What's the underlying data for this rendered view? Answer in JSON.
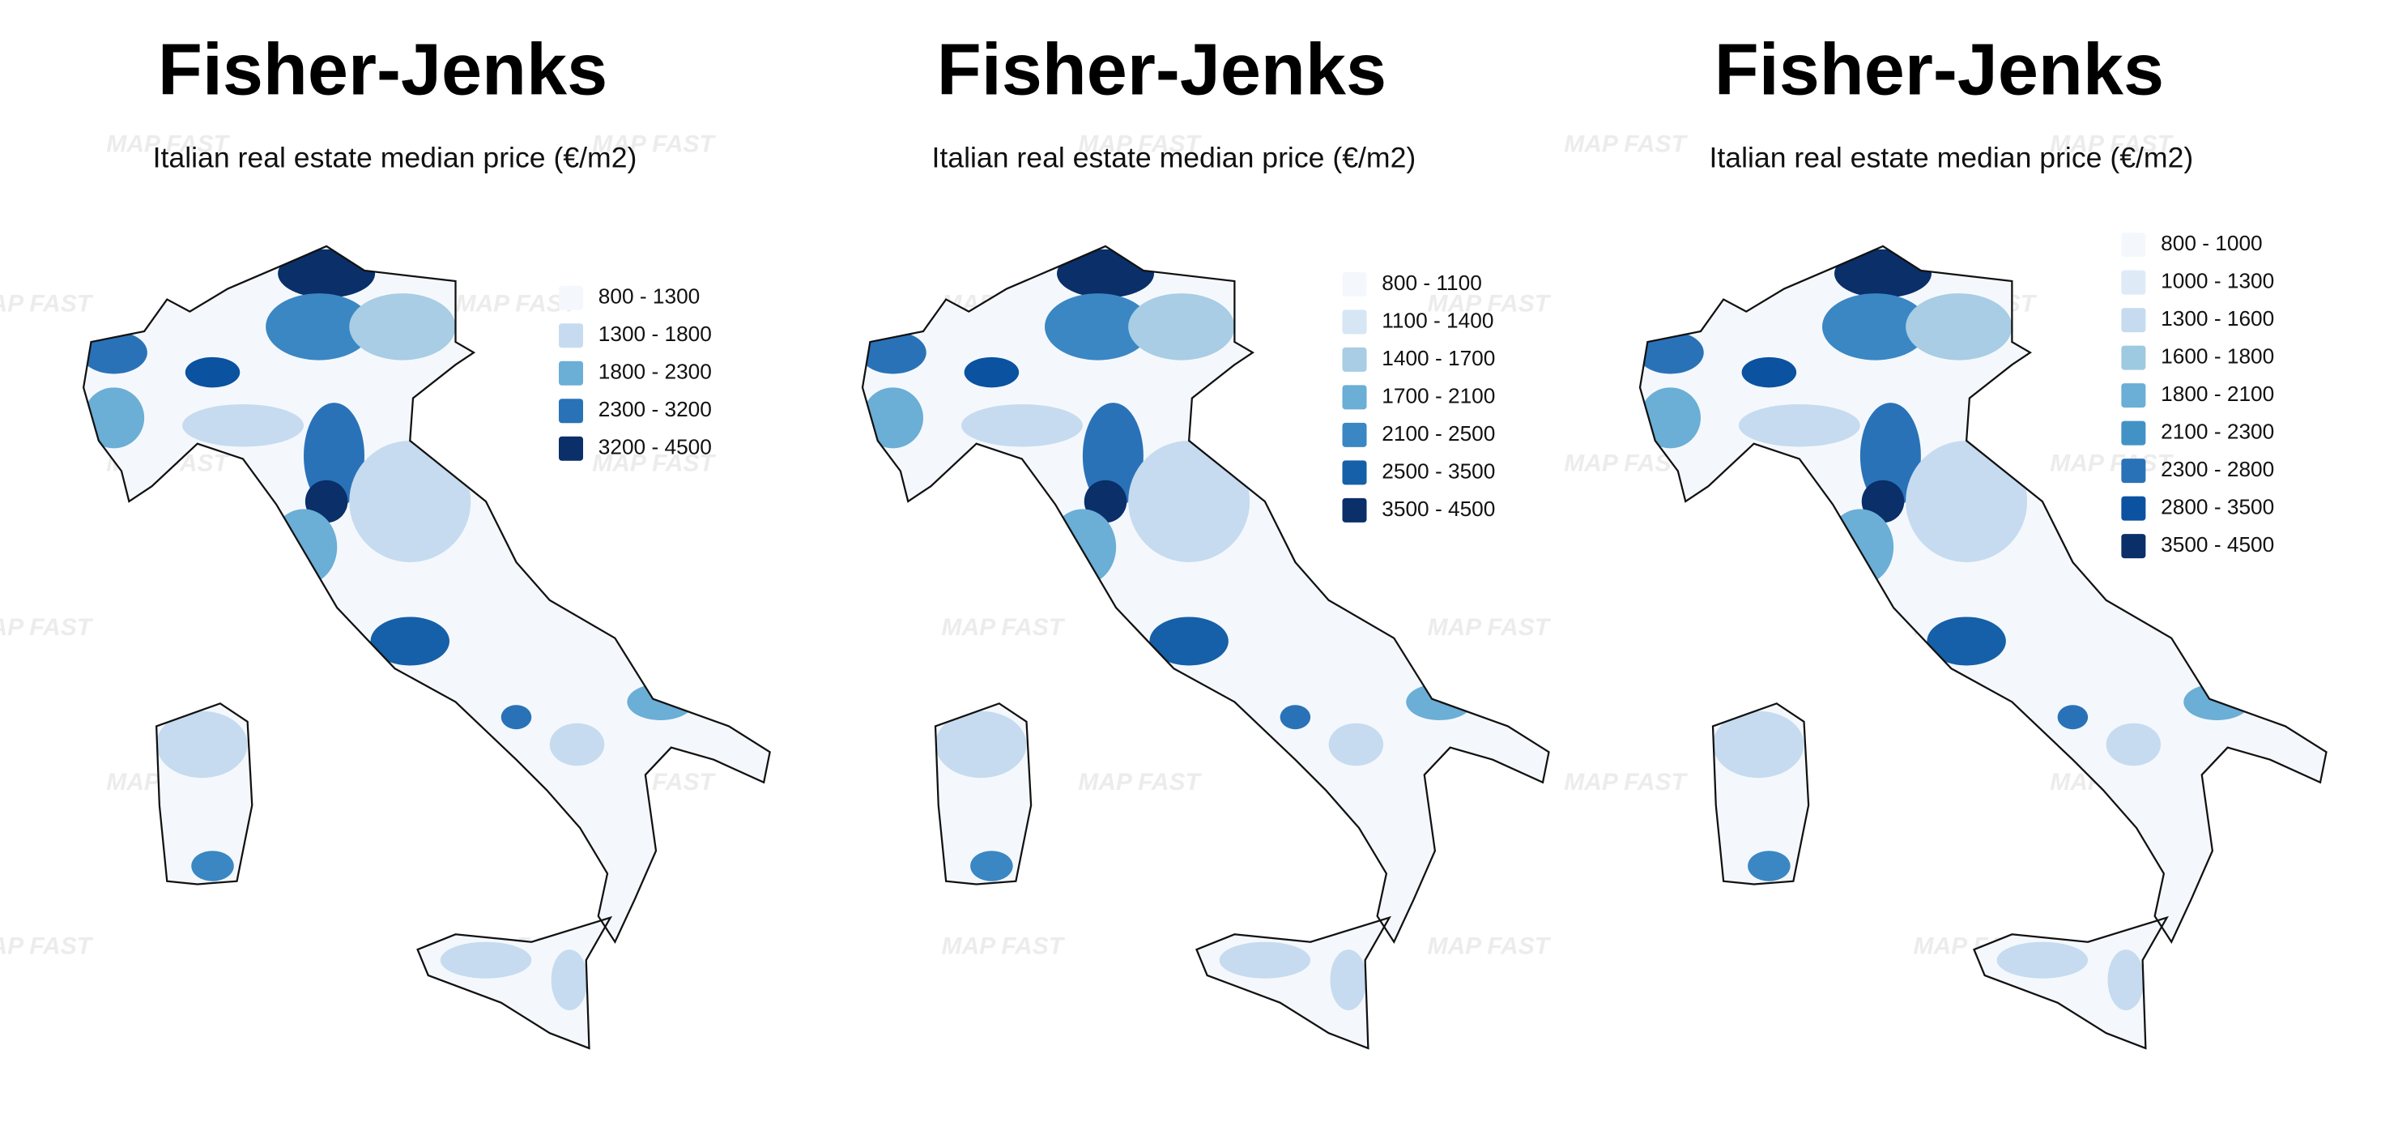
{
  "watermark": "MAP FAST",
  "panels": [
    {
      "title": "Fisher-Jenks",
      "subtitle": "Italian real estate median price (€/m2)",
      "legend": [
        {
          "label": "800 - 1300",
          "color": "#f4f8fc"
        },
        {
          "label": "1300 - 1800",
          "color": "#c6dbef"
        },
        {
          "label": "1800 - 2300",
          "color": "#6baed6"
        },
        {
          "label": "2300 - 3200",
          "color": "#2a72b8"
        },
        {
          "label": "3200 - 4500",
          "color": "#0a2f69"
        }
      ]
    },
    {
      "title": "Fisher-Jenks",
      "subtitle": "Italian real estate median price (€/m2)",
      "legend": [
        {
          "label": "800 - 1100",
          "color": "#f4f8fc"
        },
        {
          "label": "1100 - 1400",
          "color": "#d6e6f4"
        },
        {
          "label": "1400 - 1700",
          "color": "#a8cde4"
        },
        {
          "label": "1700 - 2100",
          "color": "#6baed6"
        },
        {
          "label": "2100 - 2500",
          "color": "#3a87c3"
        },
        {
          "label": "2500 - 3500",
          "color": "#1560a8"
        },
        {
          "label": "3500 - 4500",
          "color": "#0a2f69"
        }
      ]
    },
    {
      "title": "Fisher-Jenks",
      "subtitle": "Italian real estate median price (€/m2)",
      "legend": [
        {
          "label": "800 - 1000",
          "color": "#f4f8fc"
        },
        {
          "label": "1000 - 1300",
          "color": "#deebf7"
        },
        {
          "label": "1300 - 1600",
          "color": "#c6dbef"
        },
        {
          "label": "1600 - 1800",
          "color": "#9ecae1"
        },
        {
          "label": "1800 - 2100",
          "color": "#6baed6"
        },
        {
          "label": "2100 - 2300",
          "color": "#4292c6"
        },
        {
          "label": "2300 - 2800",
          "color": "#2a72b8"
        },
        {
          "label": "2800 - 3500",
          "color": "#0b52a0"
        },
        {
          "label": "3500 - 4500",
          "color": "#0a2f69"
        }
      ]
    }
  ]
}
